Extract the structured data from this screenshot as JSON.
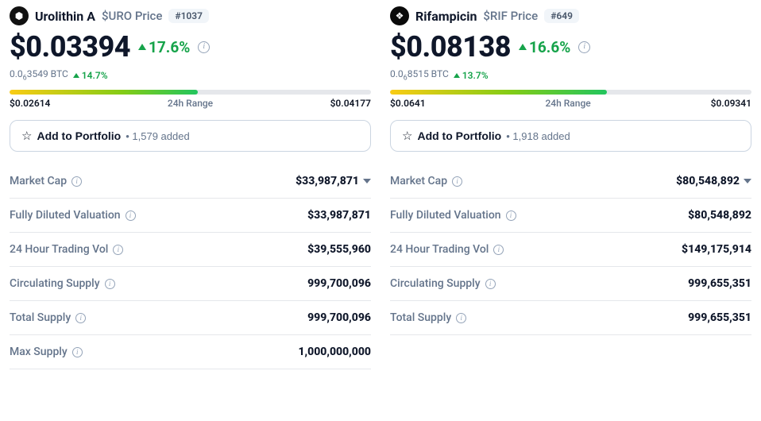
{
  "cards": [
    {
      "icon_bg": "#111111",
      "icon_glyph": "⬢",
      "name": "Urolithin A",
      "ticker": "$URO Price",
      "rank": "#1037",
      "price": "$0.03394",
      "change_pct": "17.6%",
      "btc_price_html": "0.0<sub class='sub'>6</sub>3549 BTC",
      "btc_change": "14.7%",
      "range": {
        "low": "$0.02614",
        "high": "$0.04177",
        "label": "24h Range",
        "fill_pct": 52,
        "gradient": "linear-gradient(90deg,#facc15 0%,#84cc16 60%,#22c55e 100%)"
      },
      "portfolio": {
        "label": "Add to Portfolio",
        "added_count": "1,579 added"
      },
      "stats": [
        {
          "label": "Market Cap",
          "value": "$33,987,871",
          "chevron": true
        },
        {
          "label": "Fully Diluted Valuation",
          "value": "$33,987,871"
        },
        {
          "label": "24 Hour Trading Vol",
          "value": "$39,555,960"
        },
        {
          "label": "Circulating Supply",
          "value": "999,700,096"
        },
        {
          "label": "Total Supply",
          "value": "999,700,096"
        },
        {
          "label": "Max Supply",
          "value": "1,000,000,000"
        }
      ]
    },
    {
      "icon_bg": "#0a0a0a",
      "icon_glyph": "❖",
      "name": "Rifampicin",
      "ticker": "$RIF Price",
      "rank": "#649",
      "price": "$0.08138",
      "change_pct": "16.6%",
      "btc_price_html": "0.0<sub class='sub'>6</sub>8515 BTC",
      "btc_change": "13.7%",
      "range": {
        "low": "$0.0641",
        "high": "$0.09341",
        "label": "24h Range",
        "fill_pct": 60,
        "gradient": "linear-gradient(90deg,#facc15 0%,#84cc16 55%,#22c55e 100%)"
      },
      "portfolio": {
        "label": "Add to Portfolio",
        "added_count": "1,918 added"
      },
      "stats": [
        {
          "label": "Market Cap",
          "value": "$80,548,892",
          "chevron": true
        },
        {
          "label": "Fully Diluted Valuation",
          "value": "$80,548,892"
        },
        {
          "label": "24 Hour Trading Vol",
          "value": "$149,175,914"
        },
        {
          "label": "Circulating Supply",
          "value": "999,655,351"
        },
        {
          "label": "Total Supply",
          "value": "999,655,351"
        }
      ]
    }
  ],
  "colors": {
    "up": "#16a34a",
    "muted": "#64748b",
    "border": "#e5e7eb"
  }
}
